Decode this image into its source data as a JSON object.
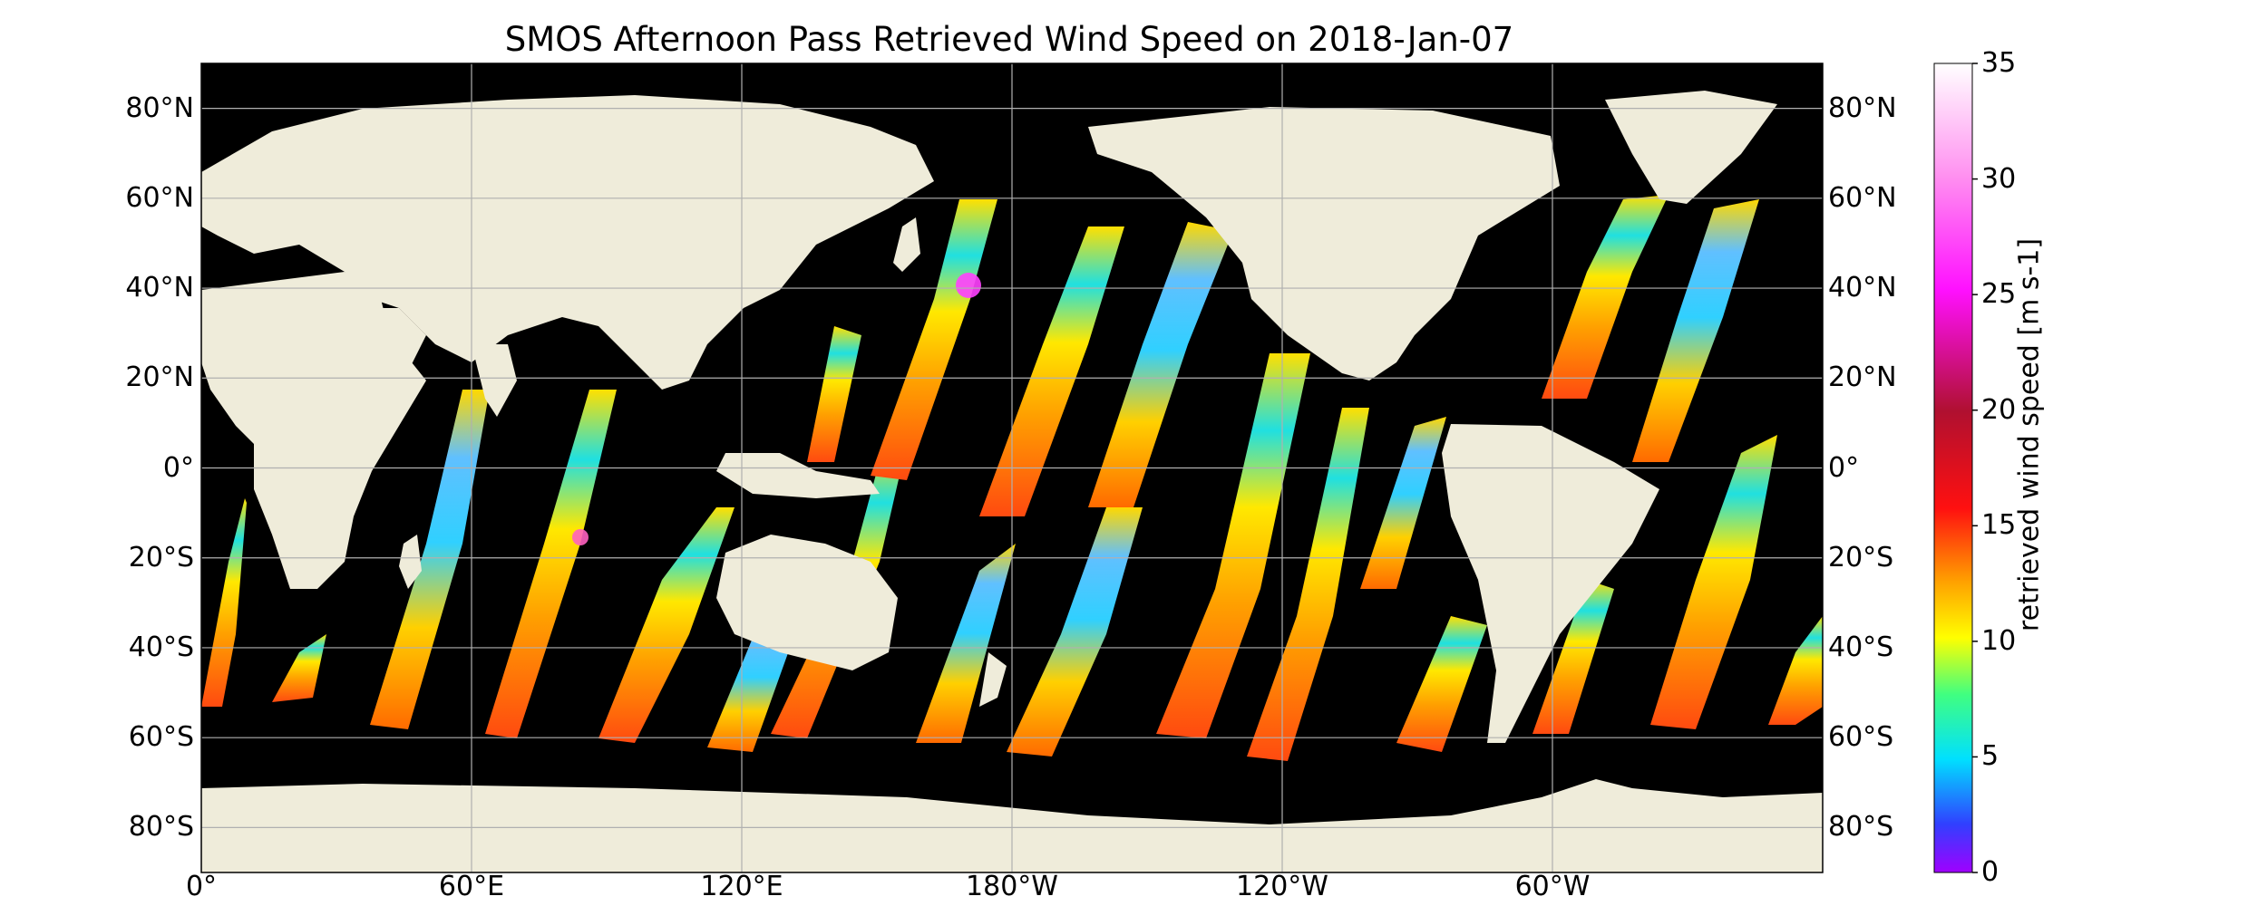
{
  "title": "SMOS Afternoon Pass Retrieved Wind Speed on 2018-Jan-07",
  "lat_ticks": [
    "80°N",
    "60°N",
    "40°N",
    "20°N",
    "0°",
    "20°S",
    "40°S",
    "60°S",
    "80°S"
  ],
  "lat_values": [
    80,
    60,
    40,
    20,
    0,
    -20,
    -40,
    -60,
    -80
  ],
  "lon_ticks": [
    "0°",
    "60°E",
    "120°E",
    "180°W",
    "120°W",
    "60°W"
  ],
  "lon_values": [
    0,
    60,
    120,
    180,
    240,
    300
  ],
  "colorbar": {
    "label": "retrieved wind speed [m s-1]",
    "ticks": [
      "0",
      "5",
      "10",
      "15",
      "20",
      "25",
      "30",
      "35"
    ],
    "tick_values": [
      0,
      5,
      10,
      15,
      20,
      25,
      30,
      35
    ],
    "range": [
      0,
      35
    ],
    "colors": [
      "#a000ff",
      "#4040ff",
      "#00e0ff",
      "#ffff00",
      "#ff8800",
      "#ff1010",
      "#b01030",
      "#ff10ff",
      "#ffc0ff",
      "#ffffff"
    ]
  },
  "map": {
    "ocean_color": "#000000",
    "land_color": "#efecda",
    "grid_color": "#b0b0b0",
    "lon_range": [
      0,
      360
    ],
    "lat_range": [
      -90,
      90
    ]
  }
}
